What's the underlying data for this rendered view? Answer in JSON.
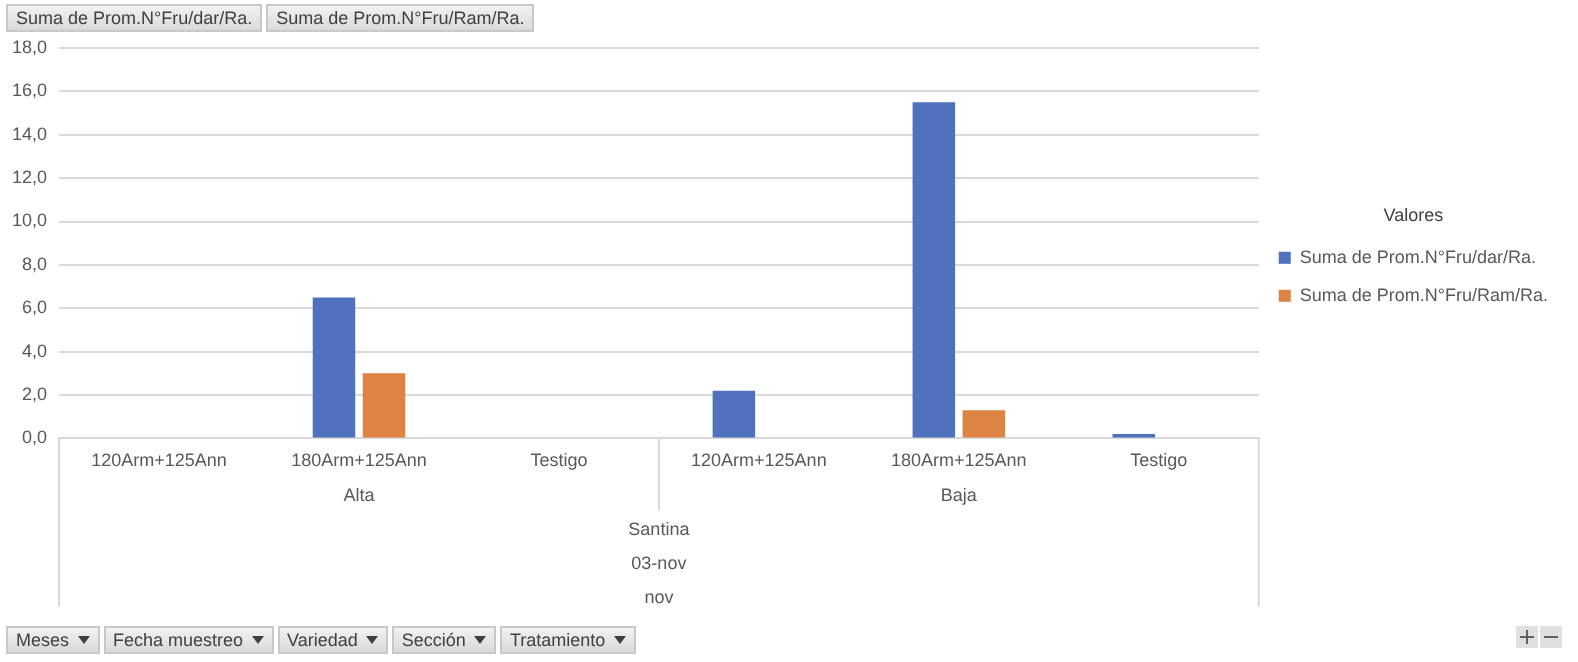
{
  "chart_data": {
    "type": "bar",
    "legend_title": "Valores",
    "legend": "right",
    "grid": "y",
    "categories": [
      "120Arm+125Ann",
      "180Arm+125Ann",
      "Testigo",
      "120Arm+125Ann",
      "180Arm+125Ann",
      "Testigo"
    ],
    "series": [
      {
        "name": "Suma de Prom.N°Fru/dar/Ra.",
        "color": "#4f71be",
        "values": [
          null,
          6.5,
          null,
          2.2,
          15.5,
          0.2
        ]
      },
      {
        "name": "Suma de Prom.N°Fru/Ram/Ra.",
        "color": "#dd8344",
        "values": [
          null,
          3.0,
          null,
          null,
          1.3,
          null
        ]
      }
    ],
    "ylim": [
      0,
      18
    ],
    "yticks": [
      {
        "value": 0,
        "label": "0,0"
      },
      {
        "value": 2,
        "label": "2,0"
      },
      {
        "value": 4,
        "label": "4,0"
      },
      {
        "value": 6,
        "label": "6,0"
      },
      {
        "value": 8,
        "label": "8,0"
      },
      {
        "value": 10,
        "label": "10,0"
      },
      {
        "value": 12,
        "label": "12,0"
      },
      {
        "value": 14,
        "label": "14,0"
      },
      {
        "value": 16,
        "label": "16,0"
      },
      {
        "value": 18,
        "label": "18,0"
      }
    ],
    "annotations": [
      "Suma de Prom.N°Fru/dar/Ra.",
      "Suma de Prom.N°Fru/Ram/Ra.",
      "Alta",
      "Baja",
      "Santina",
      "03-nov",
      "nov",
      "Meses",
      "Fecha muestreo",
      "Variedad",
      "Sección",
      "Tratamiento"
    ]
  }
}
